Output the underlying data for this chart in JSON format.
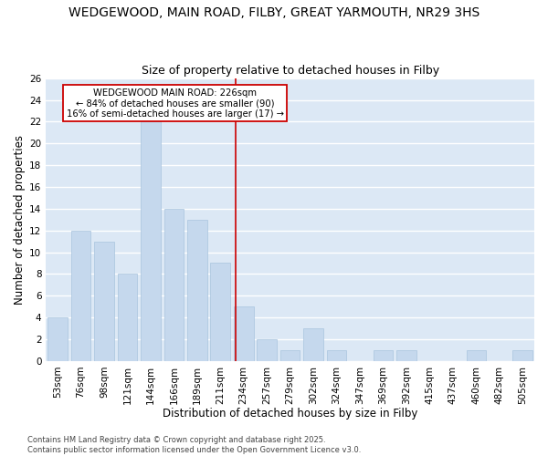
{
  "title1": "WEDGEWOOD, MAIN ROAD, FILBY, GREAT YARMOUTH, NR29 3HS",
  "title2": "Size of property relative to detached houses in Filby",
  "xlabel": "Distribution of detached houses by size in Filby",
  "ylabel": "Number of detached properties",
  "footer": "Contains HM Land Registry data © Crown copyright and database right 2025.\nContains public sector information licensed under the Open Government Licence v3.0.",
  "bin_labels": [
    "53sqm",
    "76sqm",
    "98sqm",
    "121sqm",
    "144sqm",
    "166sqm",
    "189sqm",
    "211sqm",
    "234sqm",
    "257sqm",
    "279sqm",
    "302sqm",
    "324sqm",
    "347sqm",
    "369sqm",
    "392sqm",
    "415sqm",
    "437sqm",
    "460sqm",
    "482sqm",
    "505sqm"
  ],
  "bar_values": [
    4,
    12,
    11,
    8,
    22,
    14,
    13,
    9,
    5,
    2,
    1,
    3,
    1,
    0,
    1,
    1,
    0,
    0,
    1,
    0,
    1
  ],
  "bar_color": "#c5d8ed",
  "bar_edge_color": "#a8c4de",
  "vline_color": "#cc0000",
  "annotation_text": "WEDGEWOOD MAIN ROAD: 226sqm\n← 84% of detached houses are smaller (90)\n16% of semi-detached houses are larger (17) →",
  "ylim": [
    0,
    26
  ],
  "yticks": [
    0,
    2,
    4,
    6,
    8,
    10,
    12,
    14,
    16,
    18,
    20,
    22,
    24,
    26
  ],
  "plot_bg_color": "#dce8f5",
  "grid_color": "white",
  "title_fontsize": 10,
  "subtitle_fontsize": 9,
  "axis_label_fontsize": 8.5,
  "tick_fontsize": 7.5,
  "footer_fontsize": 6,
  "vline_pos": 7.65
}
